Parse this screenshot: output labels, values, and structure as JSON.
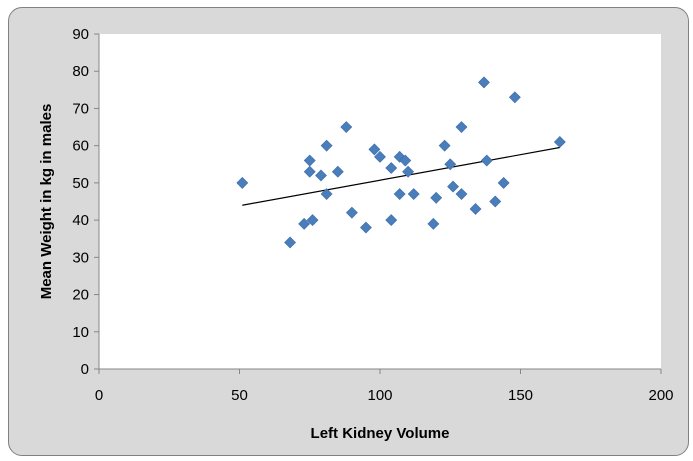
{
  "chart_data": {
    "type": "scatter",
    "title": "",
    "xlabel": "Left Kidney Volume",
    "ylabel": "Mean Weight in kg in males",
    "xlim": [
      0,
      200
    ],
    "ylim": [
      0,
      90
    ],
    "xticks": [
      0,
      50,
      100,
      150,
      200
    ],
    "yticks": [
      0,
      10,
      20,
      30,
      40,
      50,
      60,
      70,
      80,
      90
    ],
    "grid": false,
    "legend": "none",
    "colors": {
      "marker": "#4a7ebb",
      "trendline": "#000000",
      "plot_bg": "#ffffff",
      "frame_bg": "#d9d9d9"
    },
    "series": [
      {
        "marker": "diamond",
        "points": [
          [
            51,
            50
          ],
          [
            68,
            34
          ],
          [
            73,
            39
          ],
          [
            75,
            56
          ],
          [
            75,
            53
          ],
          [
            76,
            40
          ],
          [
            79,
            52
          ],
          [
            81,
            60
          ],
          [
            81,
            47
          ],
          [
            85,
            53
          ],
          [
            88,
            65
          ],
          [
            90,
            42
          ],
          [
            95,
            38
          ],
          [
            98,
            59
          ],
          [
            100,
            57
          ],
          [
            104,
            54
          ],
          [
            104,
            40
          ],
          [
            107,
            57
          ],
          [
            107,
            47
          ],
          [
            109,
            56
          ],
          [
            110,
            53
          ],
          [
            112,
            47
          ],
          [
            119,
            39
          ],
          [
            120,
            46
          ],
          [
            123,
            60
          ],
          [
            125,
            55
          ],
          [
            126,
            49
          ],
          [
            129,
            47
          ],
          [
            129,
            65
          ],
          [
            134,
            43
          ],
          [
            137,
            77
          ],
          [
            138,
            56
          ],
          [
            141,
            45
          ],
          [
            144,
            50
          ],
          [
            148,
            73
          ],
          [
            164,
            61
          ]
        ]
      }
    ],
    "trendline": {
      "type": "linear",
      "x": [
        51,
        164
      ],
      "y": [
        44,
        59.5
      ]
    }
  }
}
